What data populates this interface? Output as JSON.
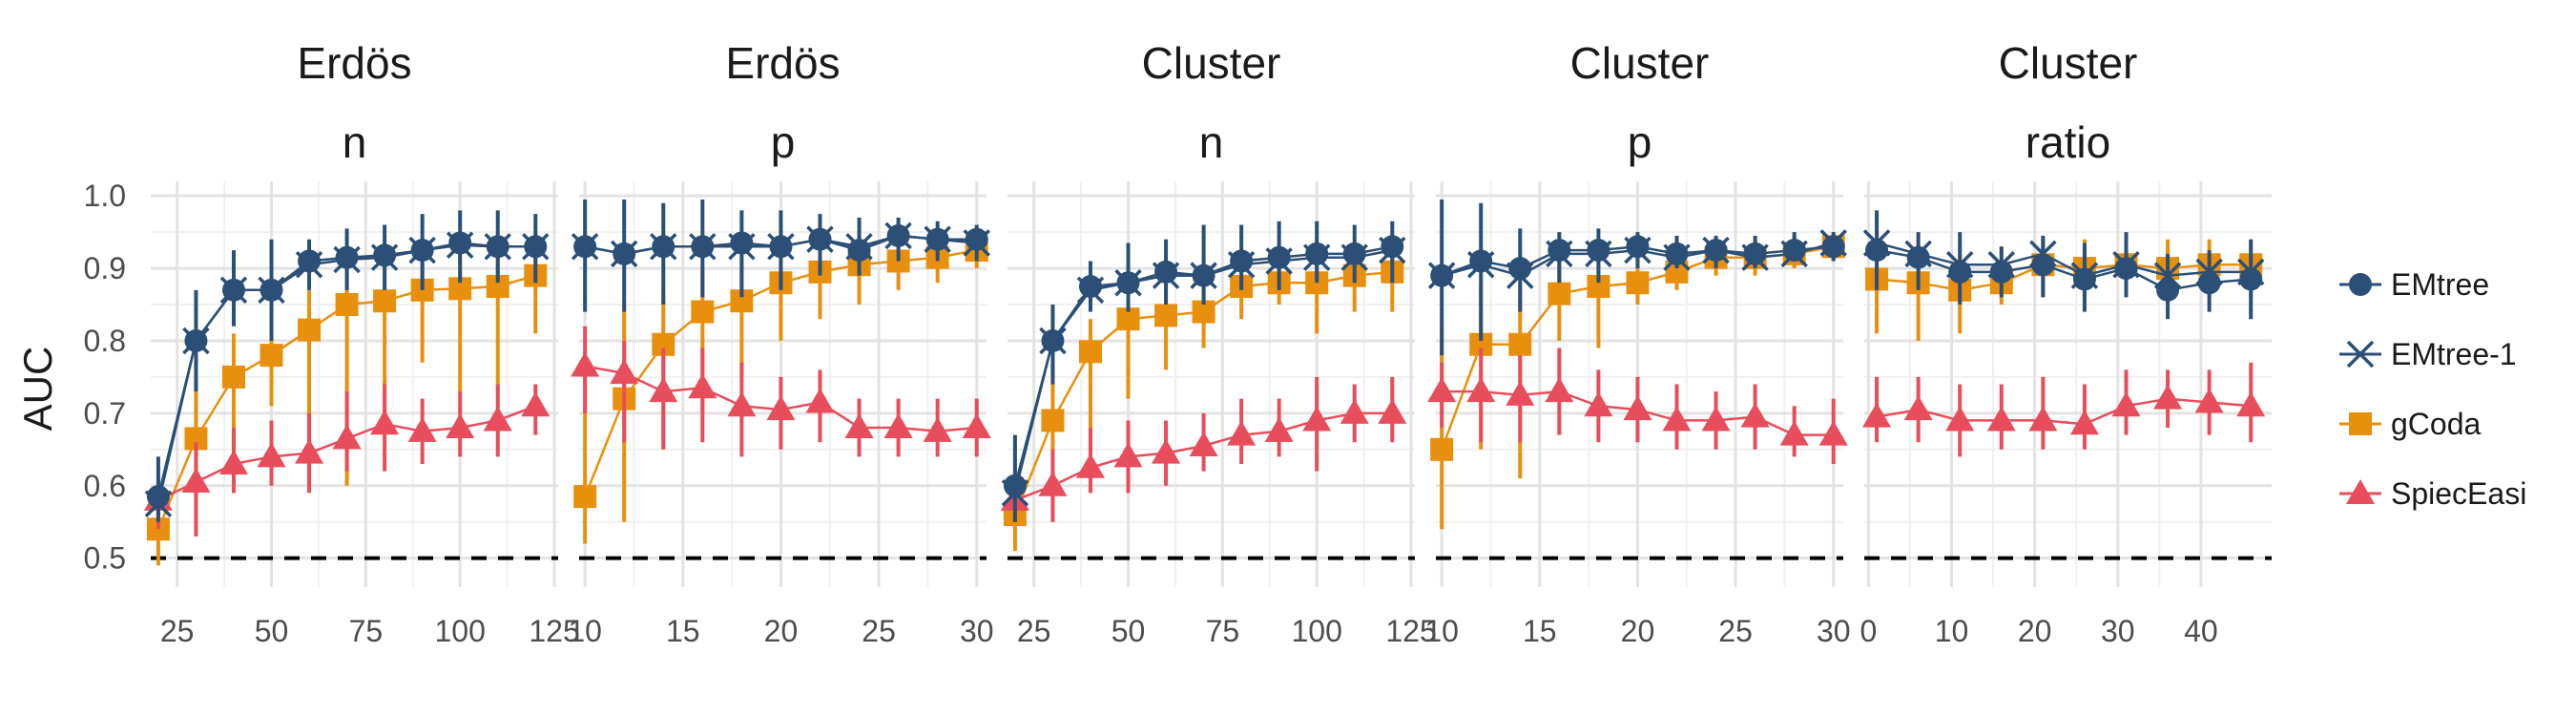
{
  "chart_data": {
    "type": "line",
    "ylabel": "AUC",
    "ylim": [
      0.46,
      1.02
    ],
    "y_ticks": [
      "0.5",
      "0.6",
      "0.7",
      "0.8",
      "0.9",
      "1.0"
    ],
    "reference_line": {
      "y": 0.5,
      "style": "dashed"
    },
    "legend": {
      "placement": "right",
      "entries": [
        {
          "name": "EMtree",
          "color": "#2b4f76",
          "marker": "circle"
        },
        {
          "name": "EMtree-1",
          "color": "#2b4f76",
          "marker": "x"
        },
        {
          "name": "gCoda",
          "color": "#e8900e",
          "marker": "square"
        },
        {
          "name": "SpiecEasi",
          "color": "#e84d5b",
          "marker": "triangle"
        }
      ]
    },
    "panels": [
      {
        "strip": [
          "Erdös",
          "n"
        ],
        "xlim": [
          18,
          126
        ],
        "x_ticks": [
          "25",
          "50",
          "75",
          "100",
          "125"
        ],
        "x": [
          20,
          30,
          40,
          50,
          60,
          70,
          80,
          90,
          100,
          110,
          120
        ],
        "series": [
          {
            "name": "EMtree",
            "values": [
              0.585,
              0.8,
              0.87,
              0.87,
              0.91,
              0.915,
              0.918,
              0.925,
              0.935,
              0.93,
              0.93
            ],
            "lo": [
              0.55,
              0.73,
              0.82,
              0.8,
              0.87,
              0.87,
              0.87,
              0.87,
              0.88,
              0.88,
              0.88
            ],
            "hi": [
              0.64,
              0.87,
              0.925,
              0.94,
              0.94,
              0.955,
              0.96,
              0.975,
              0.98,
              0.98,
              0.975
            ]
          },
          {
            "name": "EMtree-1",
            "values": [
              0.575,
              0.8,
              0.87,
              0.87,
              0.905,
              0.912,
              0.915,
              0.925,
              0.932,
              0.93,
              0.93
            ]
          },
          {
            "name": "gCoda",
            "values": [
              0.54,
              0.665,
              0.75,
              0.78,
              0.815,
              0.85,
              0.855,
              0.87,
              0.872,
              0.875,
              0.89
            ],
            "lo": [
              0.49,
              0.58,
              0.6,
              0.71,
              0.6,
              0.6,
              0.69,
              0.77,
              0.73,
              0.73,
              0.81
            ],
            "hi": [
              0.57,
              0.75,
              0.81,
              0.85,
              0.87,
              0.9,
              0.91,
              0.91,
              0.92,
              0.92,
              0.93
            ]
          },
          {
            "name": "SpiecEasi",
            "values": [
              0.58,
              0.605,
              0.63,
              0.64,
              0.645,
              0.665,
              0.685,
              0.675,
              0.68,
              0.69,
              0.71
            ],
            "lo": [
              0.54,
              0.53,
              0.59,
              0.6,
              0.59,
              0.62,
              0.62,
              0.63,
              0.64,
              0.64,
              0.67
            ],
            "hi": [
              0.61,
              0.66,
              0.68,
              0.69,
              0.7,
              0.73,
              0.74,
              0.72,
              0.73,
              0.74,
              0.74
            ]
          }
        ]
      },
      {
        "strip": [
          "Erdös",
          "p"
        ],
        "xlim": [
          9.7,
          30.5
        ],
        "x_ticks": [
          "10",
          "15",
          "20",
          "25",
          "30"
        ],
        "x": [
          10,
          12,
          14,
          16,
          18,
          20,
          22,
          24,
          26,
          28,
          30
        ],
        "series": [
          {
            "name": "EMtree",
            "values": [
              0.93,
              0.92,
              0.93,
              0.93,
              0.935,
              0.93,
              0.94,
              0.925,
              0.945,
              0.94,
              0.94
            ],
            "lo": [
              0.84,
              0.84,
              0.85,
              0.86,
              0.86,
              0.87,
              0.89,
              0.89,
              0.91,
              0.91,
              0.91
            ],
            "hi": [
              0.995,
              0.995,
              0.99,
              0.995,
              0.98,
              0.98,
              0.975,
              0.97,
              0.97,
              0.965,
              0.96
            ]
          },
          {
            "name": "EMtree-1",
            "values": [
              0.93,
              0.92,
              0.93,
              0.93,
              0.93,
              0.93,
              0.94,
              0.93,
              0.945,
              0.94,
              0.935
            ]
          },
          {
            "name": "gCoda",
            "values": [
              0.585,
              0.72,
              0.795,
              0.84,
              0.855,
              0.88,
              0.895,
              0.905,
              0.91,
              0.915,
              0.925
            ],
            "lo": [
              0.52,
              0.55,
              0.65,
              0.7,
              0.75,
              0.8,
              0.83,
              0.85,
              0.87,
              0.88,
              0.9
            ],
            "hi": [
              0.78,
              0.85,
              0.87,
              0.9,
              0.91,
              0.92,
              0.925,
              0.93,
              0.935,
              0.94,
              0.945
            ]
          },
          {
            "name": "SpiecEasi",
            "values": [
              0.765,
              0.755,
              0.73,
              0.735,
              0.71,
              0.705,
              0.715,
              0.68,
              0.68,
              0.675,
              0.68
            ],
            "lo": [
              0.7,
              0.66,
              0.65,
              0.66,
              0.64,
              0.65,
              0.66,
              0.64,
              0.64,
              0.64,
              0.64
            ],
            "hi": [
              0.82,
              0.8,
              0.79,
              0.79,
              0.77,
              0.75,
              0.76,
              0.72,
              0.72,
              0.72,
              0.72
            ]
          }
        ]
      },
      {
        "strip": [
          "Cluster",
          "n"
        ],
        "xlim": [
          18,
          126
        ],
        "x_ticks": [
          "25",
          "50",
          "75",
          "100",
          "125"
        ],
        "x": [
          20,
          30,
          40,
          50,
          60,
          70,
          80,
          90,
          100,
          110,
          120
        ],
        "series": [
          {
            "name": "EMtree",
            "values": [
              0.6,
              0.8,
              0.875,
              0.88,
              0.895,
              0.89,
              0.91,
              0.915,
              0.92,
              0.92,
              0.93
            ],
            "lo": [
              0.55,
              0.74,
              0.84,
              0.84,
              0.85,
              0.85,
              0.87,
              0.87,
              0.88,
              0.88,
              0.88
            ],
            "hi": [
              0.67,
              0.85,
              0.91,
              0.935,
              0.94,
              0.96,
              0.96,
              0.965,
              0.965,
              0.96,
              0.965
            ]
          },
          {
            "name": "EMtree-1",
            "values": [
              0.59,
              0.8,
              0.87,
              0.88,
              0.89,
              0.89,
              0.905,
              0.91,
              0.915,
              0.915,
              0.925
            ]
          },
          {
            "name": "gCoda",
            "values": [
              0.56,
              0.69,
              0.785,
              0.83,
              0.835,
              0.84,
              0.875,
              0.88,
              0.88,
              0.89,
              0.895
            ],
            "lo": [
              0.51,
              0.57,
              0.64,
              0.72,
              0.76,
              0.79,
              0.83,
              0.85,
              0.81,
              0.84,
              0.84
            ],
            "hi": [
              0.6,
              0.77,
              0.83,
              0.86,
              0.87,
              0.88,
              0.91,
              0.91,
              0.91,
              0.92,
              0.925
            ]
          },
          {
            "name": "SpiecEasi",
            "values": [
              0.58,
              0.6,
              0.625,
              0.64,
              0.645,
              0.655,
              0.67,
              0.675,
              0.69,
              0.7,
              0.7
            ],
            "lo": [
              0.55,
              0.55,
              0.59,
              0.59,
              0.6,
              0.62,
              0.63,
              0.64,
              0.62,
              0.66,
              0.66
            ],
            "hi": [
              0.61,
              0.65,
              0.68,
              0.69,
              0.69,
              0.7,
              0.72,
              0.72,
              0.75,
              0.74,
              0.75
            ]
          }
        ]
      },
      {
        "strip": [
          "Cluster",
          "p"
        ],
        "xlim": [
          9.7,
          30.5
        ],
        "x_ticks": [
          "10",
          "15",
          "20",
          "25",
          "30"
        ],
        "x": [
          10,
          12,
          14,
          16,
          18,
          20,
          22,
          24,
          26,
          28,
          30
        ],
        "series": [
          {
            "name": "EMtree",
            "values": [
              0.89,
              0.91,
              0.9,
              0.925,
              0.925,
              0.93,
              0.92,
              0.925,
              0.92,
              0.925,
              0.93
            ],
            "lo": [
              0.78,
              0.8,
              0.84,
              0.88,
              0.88,
              0.9,
              0.9,
              0.9,
              0.9,
              0.91,
              0.91
            ],
            "hi": [
              0.995,
              0.99,
              0.955,
              0.95,
              0.955,
              0.95,
              0.945,
              0.945,
              0.945,
              0.95,
              0.95
            ]
          },
          {
            "name": "EMtree-1",
            "values": [
              0.89,
              0.905,
              0.89,
              0.92,
              0.92,
              0.925,
              0.915,
              0.925,
              0.915,
              0.92,
              0.935
            ]
          },
          {
            "name": "gCoda",
            "values": [
              0.65,
              0.795,
              0.795,
              0.865,
              0.875,
              0.88,
              0.895,
              0.915,
              0.915,
              0.92,
              0.93
            ],
            "lo": [
              0.54,
              0.65,
              0.61,
              0.8,
              0.79,
              0.85,
              0.87,
              0.89,
              0.89,
              0.9,
              0.91
            ],
            "hi": [
              0.82,
              0.88,
              0.88,
              0.91,
              0.91,
              0.92,
              0.925,
              0.935,
              0.94,
              0.945,
              0.95
            ]
          },
          {
            "name": "SpiecEasi",
            "values": [
              0.73,
              0.73,
              0.725,
              0.73,
              0.71,
              0.705,
              0.69,
              0.69,
              0.695,
              0.67,
              0.67
            ],
            "lo": [
              0.68,
              0.66,
              0.66,
              0.67,
              0.66,
              0.66,
              0.65,
              0.65,
              0.65,
              0.64,
              0.63
            ],
            "hi": [
              0.77,
              0.79,
              0.78,
              0.79,
              0.76,
              0.75,
              0.74,
              0.73,
              0.74,
              0.71,
              0.72
            ]
          }
        ]
      },
      {
        "strip": [
          "Cluster",
          "ratio"
        ],
        "xlim": [
          -0.5,
          48.5
        ],
        "x_ticks": [
          "0",
          "10",
          "20",
          "30",
          "40"
        ],
        "x": [
          1,
          6,
          11,
          16,
          21,
          26,
          31,
          36,
          41,
          46
        ],
        "series": [
          {
            "name": "EMtree",
            "values": [
              0.925,
              0.915,
              0.895,
              0.895,
              0.905,
              0.885,
              0.9,
              0.87,
              0.88,
              0.885
            ],
            "lo": [
              0.87,
              0.87,
              0.85,
              0.86,
              0.86,
              0.84,
              0.86,
              0.83,
              0.84,
              0.83
            ],
            "hi": [
              0.98,
              0.95,
              0.95,
              0.93,
              0.945,
              0.935,
              0.95,
              0.92,
              0.925,
              0.94
            ]
          },
          {
            "name": "EMtree-1",
            "values": [
              0.935,
              0.92,
              0.905,
              0.905,
              0.92,
              0.89,
              0.905,
              0.89,
              0.895,
              0.895
            ]
          },
          {
            "name": "gCoda",
            "values": [
              0.885,
              0.88,
              0.87,
              0.88,
              0.905,
              0.9,
              0.905,
              0.9,
              0.905,
              0.905
            ],
            "lo": [
              0.81,
              0.8,
              0.81,
              0.85,
              0.86,
              0.86,
              0.87,
              0.85,
              0.86,
              0.86
            ],
            "hi": [
              0.93,
              0.93,
              0.92,
              0.93,
              0.94,
              0.94,
              0.94,
              0.94,
              0.94,
              0.94
            ]
          },
          {
            "name": "SpiecEasi",
            "values": [
              0.695,
              0.705,
              0.69,
              0.69,
              0.69,
              0.685,
              0.71,
              0.72,
              0.715,
              0.71
            ],
            "lo": [
              0.66,
              0.66,
              0.64,
              0.65,
              0.65,
              0.65,
              0.67,
              0.68,
              0.67,
              0.66
            ],
            "hi": [
              0.75,
              0.75,
              0.74,
              0.74,
              0.75,
              0.74,
              0.76,
              0.76,
              0.76,
              0.77
            ]
          }
        ]
      }
    ]
  }
}
